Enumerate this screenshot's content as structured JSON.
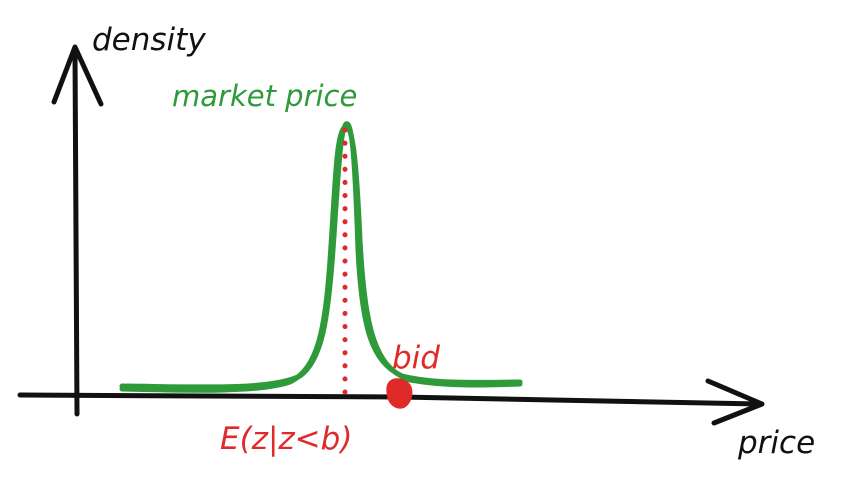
{
  "labels": {
    "y_axis": "density",
    "x_axis": "price",
    "peak": "market price",
    "bid": "bid",
    "expectation": "E(z|z<b)"
  },
  "colors": {
    "axis": "#111111",
    "curve": "#2f9a3a",
    "annotation": "#e02a2a",
    "background": "#ffffff"
  }
}
